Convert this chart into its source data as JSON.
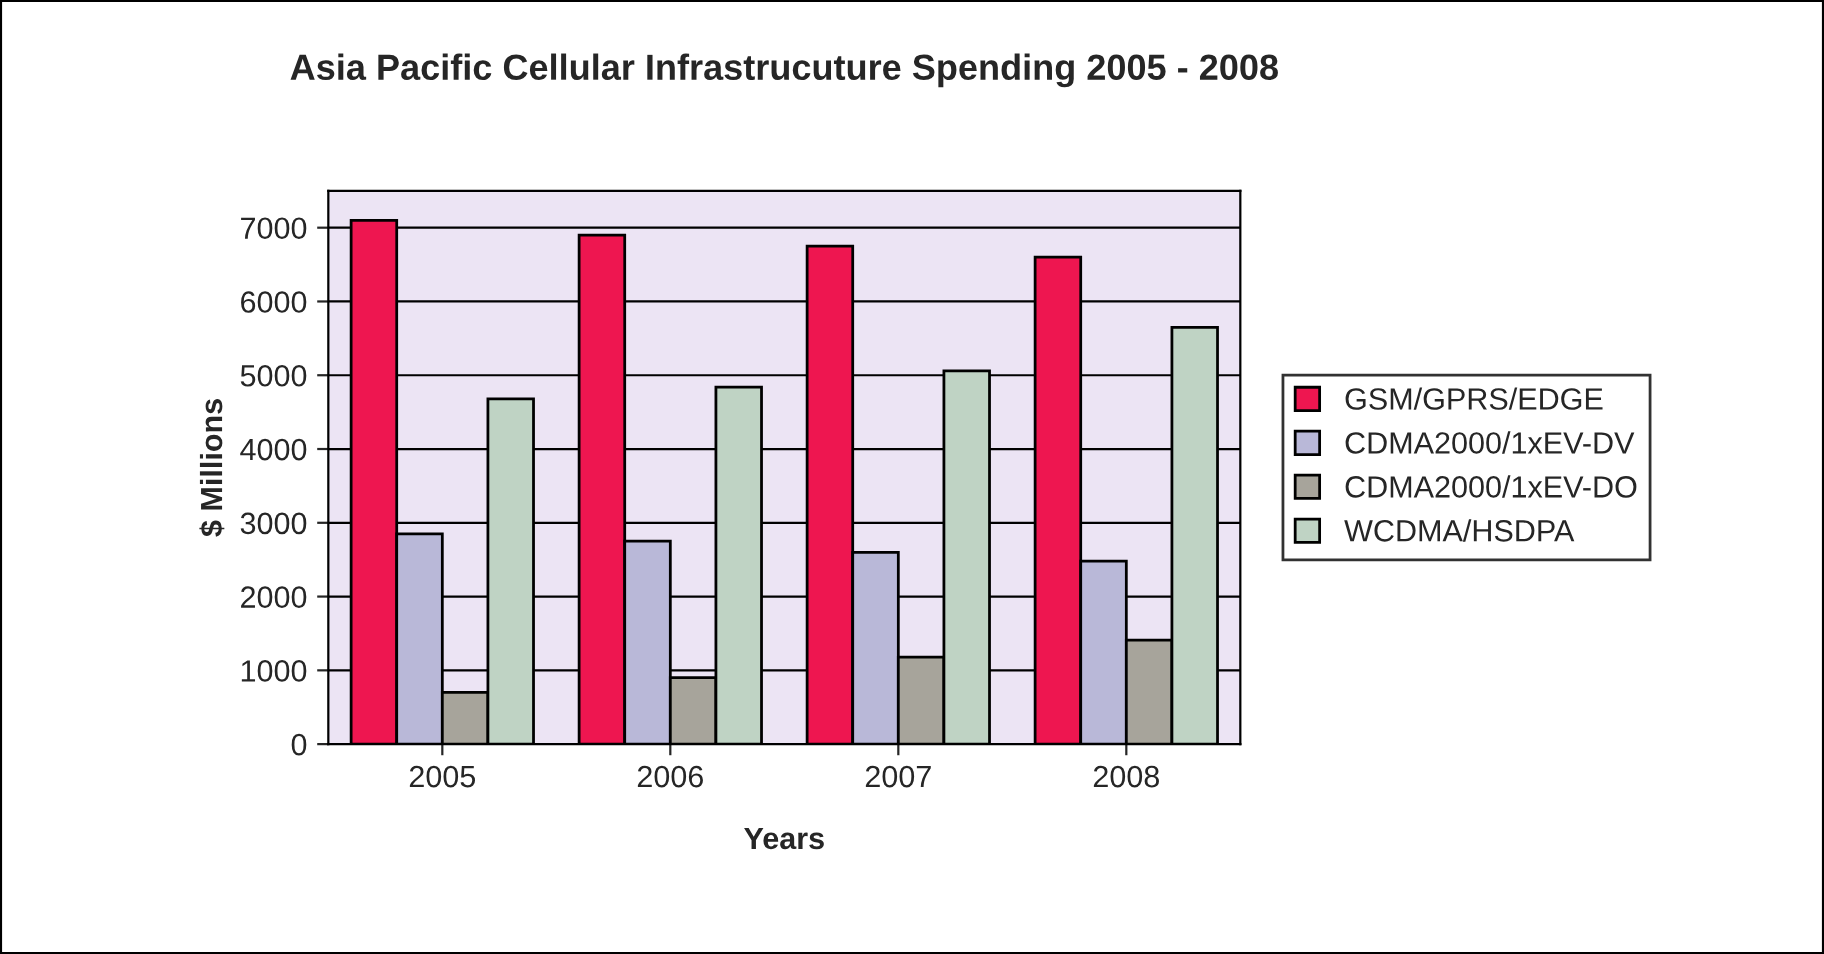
{
  "chart_data": {
    "type": "bar",
    "title": "Asia Pacific Cellular Infrastrucuture Spending 2005 - 2008",
    "xlabel": "Years",
    "ylabel": "$ Millions",
    "categories": [
      "2005",
      "2006",
      "2007",
      "2008"
    ],
    "series": [
      {
        "name": "GSM/GPRS/EDGE",
        "color": "#ee1650",
        "values": [
          7100,
          6900,
          6750,
          6600
        ]
      },
      {
        "name": "CDMA2000/1xEV-DV",
        "color": "#b9b8d8",
        "values": [
          2850,
          2750,
          2600,
          2480
        ]
      },
      {
        "name": "CDMA2000/1xEV-DO",
        "color": "#a7a49b",
        "values": [
          700,
          900,
          1180,
          1410
        ]
      },
      {
        "name": "WCDMA/HSDPA",
        "color": "#bfd3c4",
        "values": [
          4680,
          4840,
          5060,
          5650
        ]
      }
    ],
    "ylim": [
      0,
      7500
    ],
    "yticks": [
      0,
      1000,
      2000,
      3000,
      4000,
      5000,
      6000,
      7000
    ],
    "grid": "y",
    "legend": "right"
  }
}
